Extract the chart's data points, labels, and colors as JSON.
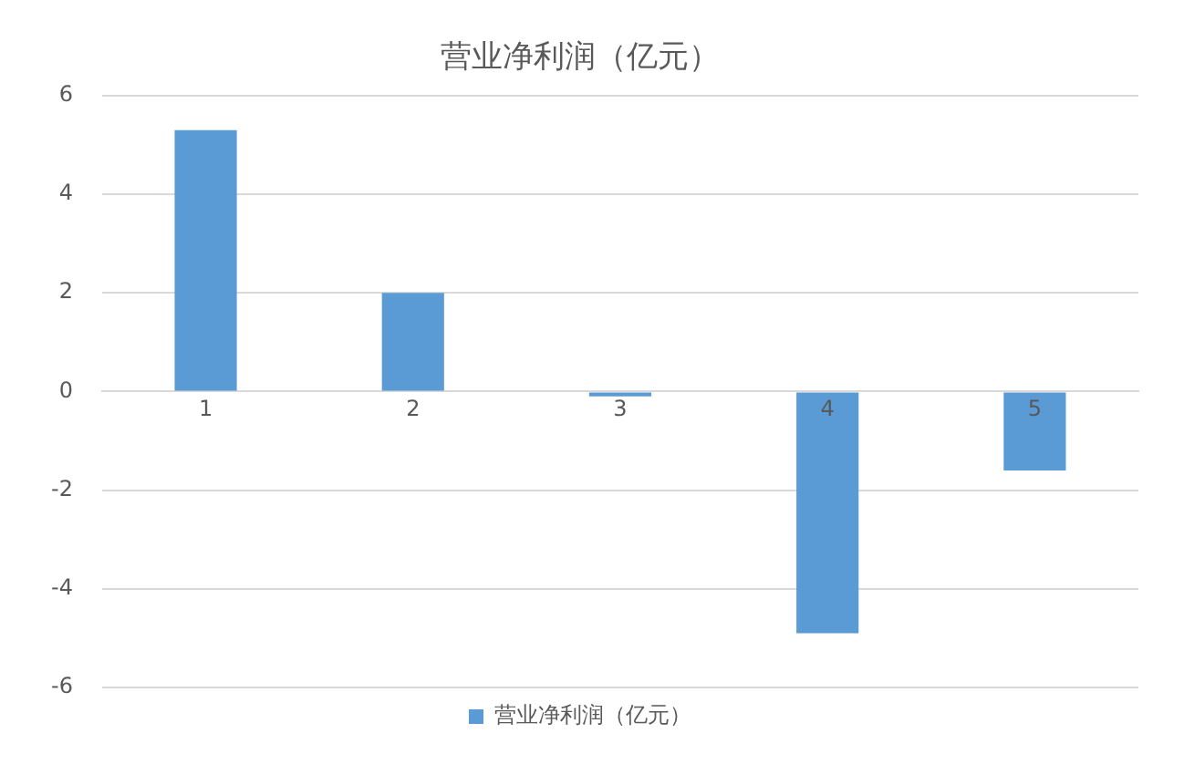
{
  "chart_data": {
    "type": "bar",
    "title": "营业净利润（亿元）",
    "categories": [
      "1",
      "2",
      "3",
      "4",
      "5"
    ],
    "series": [
      {
        "name": "营业净利润（亿元）",
        "color": "#5b9bd5",
        "values": [
          5.3,
          2.0,
          -0.1,
          -4.9,
          -1.6
        ]
      }
    ],
    "ylim": [
      -6,
      6
    ],
    "yticks": [
      -6,
      -4,
      -2,
      0,
      2,
      4,
      6
    ],
    "grid": "y",
    "legend": "bottom"
  }
}
